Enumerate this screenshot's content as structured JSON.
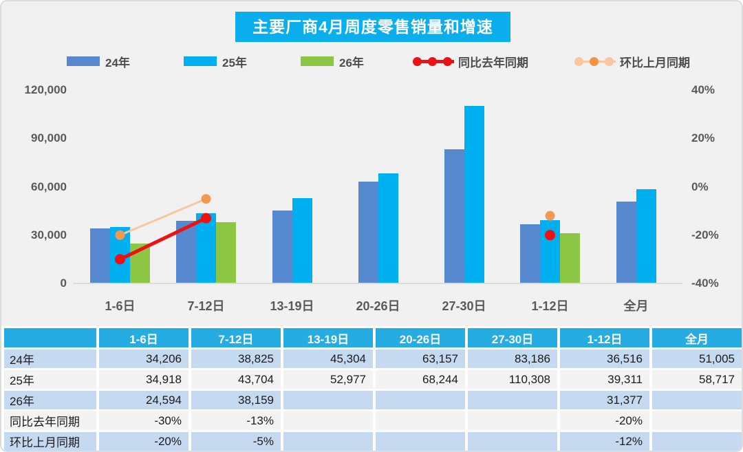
{
  "title": "主要厂商4月周度零售销量和增速",
  "colors": {
    "canvas_bg": "#F1F1F2",
    "title_bg": "#0BAEEC",
    "bar_24": "#5689CF",
    "bar_25": "#00AFF0",
    "bar_26": "#8CC644",
    "yoy_red": "#EE1111",
    "mom_orange_dot": "#F2994E",
    "mom_orange_line": "#F8C79F",
    "axis_text": "#595959",
    "table_header_bg": "#25ACE3",
    "table_row_blue": "#C5D9F1",
    "table_row_gray": "#F3F3F4"
  },
  "legend": {
    "items": [
      {
        "label": "24年",
        "marker": "swatch",
        "color": "#5689CF"
      },
      {
        "label": "25年",
        "marker": "swatch",
        "color": "#00AFF0"
      },
      {
        "label": "26年",
        "marker": "swatch",
        "color": "#8CC644"
      },
      {
        "label": "同比去年同期",
        "marker": "line",
        "line_color": "#EE1111",
        "dot_colors": [
          "#EE1111",
          "#EE1111",
          "#EE1111"
        ],
        "thick": true
      },
      {
        "label": "环比上月同期",
        "marker": "line",
        "line_color": "#F8C79F",
        "dot_colors": [
          "#F8C79F",
          "#F29345",
          "#F8C79F"
        ],
        "thick": false
      }
    ]
  },
  "chart_data": {
    "type": "bar",
    "title": "主要厂商4月周度零售销量和增速",
    "categories": [
      "1-6日",
      "7-12日",
      "13-19日",
      "20-26日",
      "27-30日",
      "1-12日",
      "全月"
    ],
    "series": [
      {
        "name": "24年",
        "color": "#5689CF",
        "values": [
          34206,
          38825,
          45304,
          63157,
          83186,
          36516,
          51005
        ]
      },
      {
        "name": "25年",
        "color": "#00AFF0",
        "values": [
          34918,
          43704,
          52977,
          68244,
          110308,
          39311,
          58717
        ]
      },
      {
        "name": "26年",
        "color": "#8CC644",
        "values": [
          24594,
          38159,
          null,
          null,
          null,
          31377,
          null
        ]
      }
    ],
    "lines": [
      {
        "name": "同比去年同期",
        "line_color": "#EE1111",
        "dot_color": "#EE1111",
        "width": 5,
        "dot_r": 7.5,
        "values_pct": [
          -30,
          -13,
          null,
          null,
          null,
          -20,
          null
        ]
      },
      {
        "name": "环比上月同期",
        "line_color": "#F8C79F",
        "dot_color": "#F2994E",
        "width": 3,
        "dot_r": 7,
        "values_pct": [
          -20,
          -5,
          null,
          null,
          null,
          -12,
          null
        ]
      }
    ],
    "y_left": {
      "min": 0,
      "max": 120000,
      "ticks": [
        "120,000",
        "90,000",
        "60,000",
        "30,000",
        "0"
      ]
    },
    "y_right": {
      "min": -40,
      "max": 40,
      "ticks": [
        "40%",
        "20%",
        "0%",
        "-20%",
        "-40%"
      ]
    },
    "grid": false,
    "legend_position": "top"
  },
  "table": {
    "columns": [
      "",
      "1-6日",
      "7-12日",
      "13-19日",
      "20-26日",
      "27-30日",
      "1-12日",
      "全月"
    ],
    "rows": [
      {
        "label": "24年",
        "values": [
          "34,206",
          "38,825",
          "45,304",
          "63,157",
          "83,186",
          "36,516",
          "51,005"
        ],
        "bg": "blue"
      },
      {
        "label": "25年",
        "values": [
          "34,918",
          "43,704",
          "52,977",
          "68,244",
          "110,308",
          "39,311",
          "58,717"
        ],
        "bg": "gray"
      },
      {
        "label": "26年",
        "values": [
          "24,594",
          "38,159",
          "",
          "",
          "",
          "31,377",
          ""
        ],
        "bg": "blue"
      },
      {
        "label": "同比去年同期",
        "values": [
          "-30%",
          "-13%",
          "",
          "",
          "",
          "-20%",
          ""
        ],
        "bg": "gray"
      },
      {
        "label": "环比上月同期",
        "values": [
          "-20%",
          "-5%",
          "",
          "",
          "",
          "-12%",
          ""
        ],
        "bg": "blue"
      }
    ]
  }
}
